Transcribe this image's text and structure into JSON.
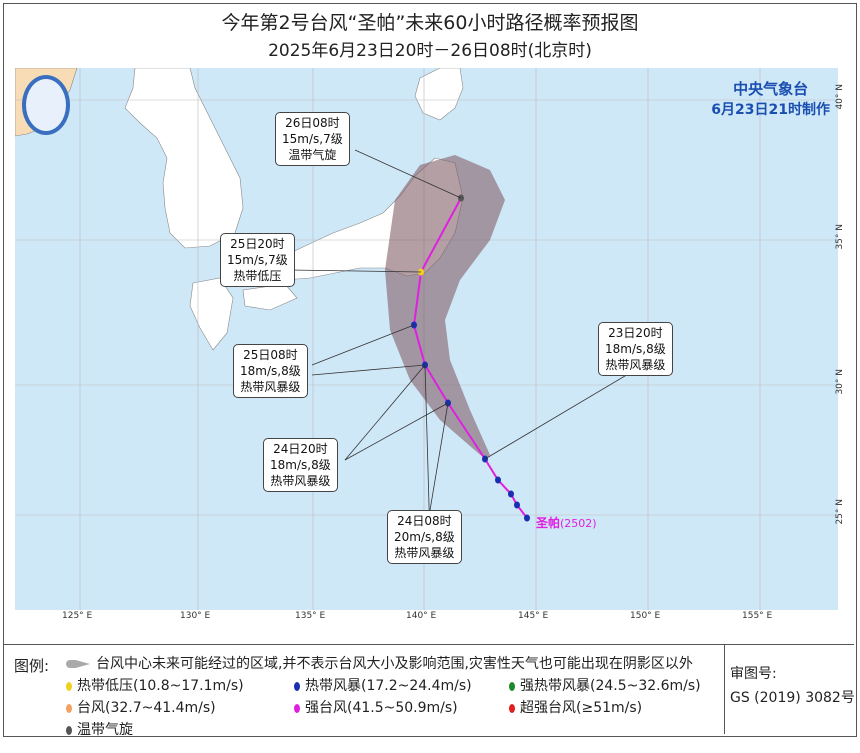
{
  "title": "今年第2号台风“圣帕”未来60小时路径概率预报图",
  "subtitle": "2025年6月23日20时－26日08时(北京时)",
  "agency": {
    "name": "中央气象台",
    "made": "6月23日21时制作"
  },
  "storm": {
    "name": "圣帕",
    "code": "(2502)"
  },
  "lon_ticks": [
    "125° E",
    "130° E",
    "135° E",
    "140° E",
    "145° E",
    "150° E",
    "155° E"
  ],
  "lat_ticks": [
    "40° N",
    "35° N",
    "30° N",
    "25° N"
  ],
  "forecasts": [
    {
      "time": "23日20时",
      "wind": "18m/s,8级",
      "type": "热带风暴级",
      "color": "#1a2fb0"
    },
    {
      "time": "24日08时",
      "wind": "20m/s,8级",
      "type": "热带风暴级",
      "color": "#1a2fb0"
    },
    {
      "time": "24日20时",
      "wind": "18m/s,8级",
      "type": "热带风暴级",
      "color": "#1a2fb0"
    },
    {
      "time": "25日08时",
      "wind": "18m/s,8级",
      "type": "热带风暴级",
      "color": "#1a2fb0"
    },
    {
      "time": "25日20时",
      "wind": "15m/s,7级",
      "type": "热带低压",
      "color": "#f0d020"
    },
    {
      "time": "26日08时",
      "wind": "15m/s,7级",
      "type": "温带气旋",
      "color": "#555555"
    }
  ],
  "legend": {
    "label": "图例:",
    "cone": "台风中心未来可能经过的区域,并不表示台风大小及影响范围,灾害性天气也可能出现在阴影区以外",
    "items": [
      {
        "text": "热带低压(10.8~17.1m/s)",
        "color": "#f0d020"
      },
      {
        "text": "热带风暴(17.2~24.4m/s)",
        "color": "#1a2fb0"
      },
      {
        "text": "强热带风暴(24.5~32.6m/s)",
        "color": "#1a8a2a"
      },
      {
        "text": "台风(32.7~41.4m/s)",
        "color": "#f4a060"
      },
      {
        "text": "强台风(41.5~50.9m/s)",
        "color": "#e020e0"
      },
      {
        "text": "超强台风(≥51m/s)",
        "color": "#e02020"
      },
      {
        "text": "温带气旋",
        "color": "#555555"
      }
    ],
    "approval_label": "审图号:",
    "approval_no": "GS (2019) 3082号"
  }
}
